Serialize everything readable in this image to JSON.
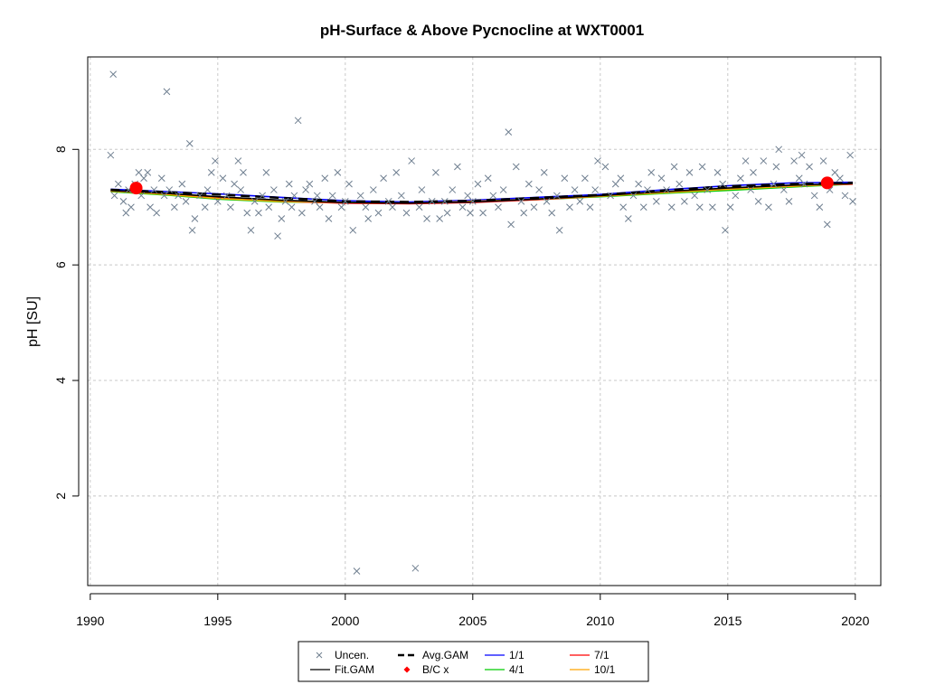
{
  "chart_data": {
    "type": "scatter",
    "title": "pH-Surface & Above Pycnocline at WXT0001",
    "xlabel": "",
    "ylabel": "pH [SU]",
    "xlim": [
      1989.9,
      2021.0
    ],
    "ylim": [
      0.45,
      9.6
    ],
    "x_ticks": [
      1990,
      1995,
      2000,
      2005,
      2010,
      2015,
      2020
    ],
    "x_tick_labels": [
      "1990",
      "1995",
      "2000",
      "2005",
      "2010",
      "2015",
      "2020"
    ],
    "y_ticks": [
      2,
      4,
      6,
      8
    ],
    "y_tick_labels": [
      "2",
      "4",
      "6",
      "8"
    ],
    "grid": true,
    "legend_position": "bottom-center",
    "legend": {
      "items": [
        {
          "label": "Uncen.",
          "symbol": "cross",
          "color": "#708090"
        },
        {
          "label": "Fit.GAM",
          "symbol": "line",
          "color": "#000000"
        },
        {
          "label": "Avg.GAM",
          "symbol": "dashed-line",
          "color": "#000000"
        },
        {
          "label": "B/C x",
          "symbol": "diamond",
          "color": "#ff0000"
        },
        {
          "label": "1/1",
          "symbol": "line",
          "color": "#0000ff"
        },
        {
          "label": "4/1",
          "symbol": "line",
          "color": "#00cc00"
        },
        {
          "label": "7/1",
          "symbol": "line",
          "color": "#ff0000"
        },
        {
          "label": "10/1",
          "symbol": "line",
          "color": "#ffa500"
        }
      ]
    },
    "observations": [
      [
        1990.8,
        7.9
      ],
      [
        1990.9,
        9.3
      ],
      [
        1990.95,
        7.2
      ],
      [
        1991.1,
        7.4
      ],
      [
        1991.3,
        7.1
      ],
      [
        1991.4,
        6.9
      ],
      [
        1991.5,
        7.3
      ],
      [
        1991.6,
        7.0
      ],
      [
        1991.75,
        7.4
      ],
      [
        1991.9,
        7.6
      ],
      [
        1992.0,
        7.2
      ],
      [
        1992.1,
        7.5
      ],
      [
        1992.25,
        7.6
      ],
      [
        1992.35,
        7.0
      ],
      [
        1992.5,
        7.3
      ],
      [
        1992.6,
        6.9
      ],
      [
        1992.8,
        7.5
      ],
      [
        1992.9,
        7.2
      ],
      [
        1993.0,
        9.0
      ],
      [
        1993.1,
        7.3
      ],
      [
        1993.3,
        7.0
      ],
      [
        1993.45,
        7.2
      ],
      [
        1993.6,
        7.4
      ],
      [
        1993.75,
        7.1
      ],
      [
        1993.9,
        8.1
      ],
      [
        1994.0,
        6.6
      ],
      [
        1994.1,
        6.8
      ],
      [
        1994.3,
        7.2
      ],
      [
        1994.5,
        7.0
      ],
      [
        1994.6,
        7.3
      ],
      [
        1994.75,
        7.6
      ],
      [
        1994.9,
        7.8
      ],
      [
        1995.0,
        7.1
      ],
      [
        1995.2,
        7.5
      ],
      [
        1995.35,
        7.2
      ],
      [
        1995.5,
        7.0
      ],
      [
        1995.65,
        7.4
      ],
      [
        1995.8,
        7.8
      ],
      [
        1995.9,
        7.3
      ],
      [
        1996.0,
        7.6
      ],
      [
        1996.15,
        6.9
      ],
      [
        1996.3,
        6.6
      ],
      [
        1996.45,
        7.1
      ],
      [
        1996.6,
        6.9
      ],
      [
        1996.75,
        7.2
      ],
      [
        1996.9,
        7.6
      ],
      [
        1997.0,
        7.0
      ],
      [
        1997.2,
        7.3
      ],
      [
        1997.35,
        6.5
      ],
      [
        1997.5,
        6.8
      ],
      [
        1997.65,
        7.1
      ],
      [
        1997.8,
        7.4
      ],
      [
        1997.9,
        7.0
      ],
      [
        1998.0,
        7.2
      ],
      [
        1998.15,
        8.5
      ],
      [
        1998.3,
        6.9
      ],
      [
        1998.45,
        7.3
      ],
      [
        1998.6,
        7.4
      ],
      [
        1998.8,
        7.1
      ],
      [
        1998.9,
        7.2
      ],
      [
        1999.0,
        7.0
      ],
      [
        1999.2,
        7.5
      ],
      [
        1999.35,
        6.8
      ],
      [
        1999.5,
        7.2
      ],
      [
        1999.7,
        7.6
      ],
      [
        1999.85,
        7.0
      ],
      [
        2000.0,
        7.1
      ],
      [
        2000.15,
        7.4
      ],
      [
        2000.3,
        6.6
      ],
      [
        2000.45,
        0.7
      ],
      [
        2000.6,
        7.2
      ],
      [
        2000.8,
        7.0
      ],
      [
        2000.9,
        6.8
      ],
      [
        2001.1,
        7.3
      ],
      [
        2001.3,
        6.9
      ],
      [
        2001.5,
        7.5
      ],
      [
        2001.7,
        7.1
      ],
      [
        2001.85,
        7.0
      ],
      [
        2002.0,
        7.6
      ],
      [
        2002.2,
        7.2
      ],
      [
        2002.4,
        6.9
      ],
      [
        2002.6,
        7.8
      ],
      [
        2002.75,
        0.75
      ],
      [
        2002.9,
        7.0
      ],
      [
        2003.0,
        7.3
      ],
      [
        2003.2,
        6.8
      ],
      [
        2003.4,
        7.1
      ],
      [
        2003.55,
        7.6
      ],
      [
        2003.7,
        6.8
      ],
      [
        2003.9,
        7.1
      ],
      [
        2004.0,
        6.9
      ],
      [
        2004.2,
        7.3
      ],
      [
        2004.4,
        7.7
      ],
      [
        2004.6,
        7.0
      ],
      [
        2004.8,
        7.2
      ],
      [
        2004.9,
        6.9
      ],
      [
        2005.0,
        7.1
      ],
      [
        2005.2,
        7.4
      ],
      [
        2005.4,
        6.9
      ],
      [
        2005.6,
        7.5
      ],
      [
        2005.8,
        7.2
      ],
      [
        2006.0,
        7.0
      ],
      [
        2006.2,
        7.3
      ],
      [
        2006.4,
        8.3
      ],
      [
        2006.5,
        6.7
      ],
      [
        2006.7,
        7.7
      ],
      [
        2006.9,
        7.1
      ],
      [
        2007.0,
        6.9
      ],
      [
        2007.2,
        7.4
      ],
      [
        2007.4,
        7.0
      ],
      [
        2007.6,
        7.3
      ],
      [
        2007.8,
        7.6
      ],
      [
        2007.9,
        7.1
      ],
      [
        2008.1,
        6.9
      ],
      [
        2008.3,
        7.2
      ],
      [
        2008.4,
        6.6
      ],
      [
        2008.6,
        7.5
      ],
      [
        2008.8,
        7.0
      ],
      [
        2009.0,
        7.3
      ],
      [
        2009.2,
        7.1
      ],
      [
        2009.4,
        7.5
      ],
      [
        2009.6,
        7.0
      ],
      [
        2009.8,
        7.3
      ],
      [
        2009.9,
        7.8
      ],
      [
        2010.2,
        7.7
      ],
      [
        2010.4,
        7.2
      ],
      [
        2010.6,
        7.4
      ],
      [
        2010.8,
        7.5
      ],
      [
        2010.9,
        7.0
      ],
      [
        2011.1,
        6.8
      ],
      [
        2011.3,
        7.2
      ],
      [
        2011.5,
        7.4
      ],
      [
        2011.7,
        7.0
      ],
      [
        2011.85,
        7.3
      ],
      [
        2012.0,
        7.6
      ],
      [
        2012.2,
        7.1
      ],
      [
        2012.4,
        7.5
      ],
      [
        2012.6,
        7.3
      ],
      [
        2012.8,
        7.0
      ],
      [
        2012.9,
        7.7
      ],
      [
        2013.1,
        7.4
      ],
      [
        2013.3,
        7.1
      ],
      [
        2013.5,
        7.6
      ],
      [
        2013.7,
        7.2
      ],
      [
        2013.9,
        7.0
      ],
      [
        2014.0,
        7.7
      ],
      [
        2014.2,
        7.3
      ],
      [
        2014.4,
        7.0
      ],
      [
        2014.6,
        7.6
      ],
      [
        2014.8,
        7.4
      ],
      [
        2014.9,
        6.6
      ],
      [
        2015.1,
        7.0
      ],
      [
        2015.3,
        7.2
      ],
      [
        2015.5,
        7.5
      ],
      [
        2015.7,
        7.8
      ],
      [
        2015.9,
        7.3
      ],
      [
        2016.0,
        7.6
      ],
      [
        2016.2,
        7.1
      ],
      [
        2016.4,
        7.8
      ],
      [
        2016.6,
        7.0
      ],
      [
        2016.8,
        7.4
      ],
      [
        2016.9,
        7.7
      ],
      [
        2017.0,
        8.0
      ],
      [
        2017.2,
        7.3
      ],
      [
        2017.4,
        7.1
      ],
      [
        2017.6,
        7.8
      ],
      [
        2017.8,
        7.5
      ],
      [
        2017.9,
        7.9
      ],
      [
        2018.0,
        7.4
      ],
      [
        2018.2,
        7.7
      ],
      [
        2018.4,
        7.2
      ],
      [
        2018.6,
        7.0
      ],
      [
        2018.75,
        7.8
      ],
      [
        2018.9,
        6.7
      ],
      [
        2019.0,
        7.3
      ],
      [
        2019.2,
        7.6
      ],
      [
        2019.4,
        7.5
      ],
      [
        2019.6,
        7.2
      ],
      [
        2019.8,
        7.9
      ],
      [
        2019.9,
        7.1
      ]
    ],
    "series": [
      {
        "name": "Fit.GAM",
        "color": "#000000",
        "x": [
          1990.8,
          1993,
          1995,
          1997.5,
          2000,
          2002.5,
          2005,
          2007.5,
          2010,
          2012.5,
          2015,
          2017.5,
          2019.9
        ],
        "y": [
          7.29,
          7.24,
          7.18,
          7.12,
          7.08,
          7.07,
          7.09,
          7.14,
          7.2,
          7.27,
          7.33,
          7.38,
          7.41
        ]
      },
      {
        "name": "Avg.GAM",
        "color": "#000000",
        "dashed": true,
        "x": [
          1990.8,
          1993,
          1995,
          1997.5,
          2000,
          2002.5,
          2005,
          2007.5,
          2010,
          2012.5,
          2015,
          2017.5,
          2019.9
        ],
        "y": [
          7.3,
          7.26,
          7.22,
          7.16,
          7.1,
          7.09,
          7.11,
          7.16,
          7.21,
          7.29,
          7.36,
          7.4,
          7.42
        ]
      },
      {
        "name": "1/1",
        "color": "#0000ff",
        "x": [
          1990.8,
          1993,
          1995,
          1997.5,
          2000,
          2002.5,
          2005,
          2007.5,
          2010,
          2012.5,
          2015,
          2017.5,
          2019.9
        ],
        "y": [
          7.31,
          7.27,
          7.23,
          7.17,
          7.11,
          7.09,
          7.12,
          7.17,
          7.22,
          7.3,
          7.37,
          7.42,
          7.43
        ]
      },
      {
        "name": "4/1",
        "color": "#00cc00",
        "x": [
          1990.8,
          1993,
          1995,
          1997.5,
          2000,
          2002.5,
          2005,
          2007.5,
          2010,
          2012.5,
          2015,
          2017.5,
          2019.9
        ],
        "y": [
          7.27,
          7.21,
          7.14,
          7.09,
          7.08,
          7.07,
          7.09,
          7.13,
          7.18,
          7.24,
          7.29,
          7.35,
          7.4
        ]
      },
      {
        "name": "7/1",
        "color": "#ff0000",
        "x": [
          1990.8,
          1993,
          1995,
          1997.5,
          2000,
          2002.5,
          2005,
          2007.5,
          2010,
          2012.5,
          2015,
          2017.5,
          2019.9
        ],
        "y": [
          7.28,
          7.23,
          7.16,
          7.1,
          7.07,
          7.06,
          7.08,
          7.13,
          7.19,
          7.26,
          7.32,
          7.37,
          7.4
        ]
      },
      {
        "name": "10/1",
        "color": "#ffa500",
        "x": [
          1990.8,
          1993,
          1995,
          1997.5,
          2000,
          2002.5,
          2005,
          2007.5,
          2010,
          2012.5,
          2015,
          2017.5,
          2019.9
        ],
        "y": [
          7.28,
          7.22,
          7.15,
          7.1,
          7.08,
          7.07,
          7.1,
          7.14,
          7.19,
          7.25,
          7.31,
          7.36,
          7.41
        ]
      }
    ],
    "baseline_current_points": [
      [
        1991.8,
        7.33
      ],
      [
        2018.9,
        7.42
      ]
    ]
  }
}
